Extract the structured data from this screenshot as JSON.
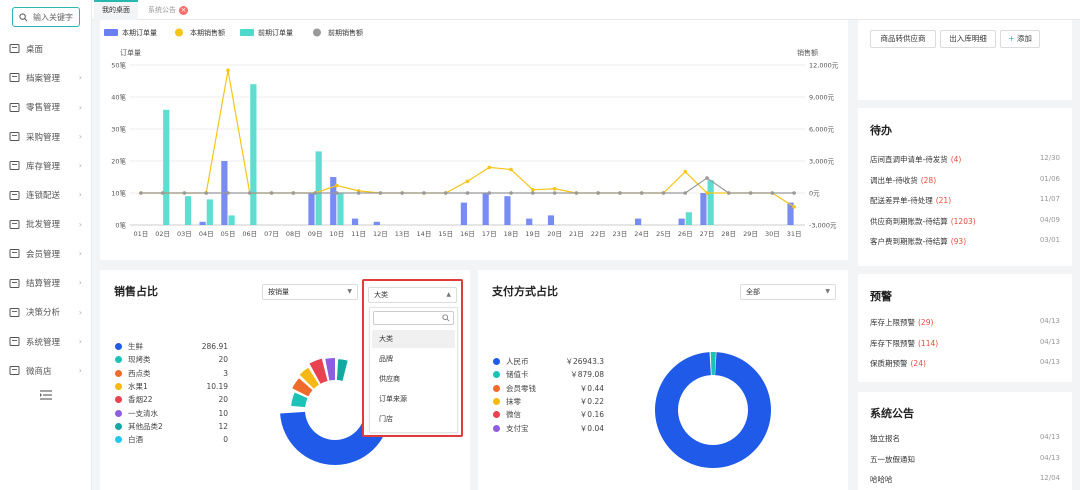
{
  "search": {
    "placeholder": "输入关键字"
  },
  "nav": [
    {
      "label": "桌面",
      "icon": "monitor-icon",
      "chev": false
    },
    {
      "label": "档案管理",
      "icon": "archive-icon",
      "chev": true
    },
    {
      "label": "零售管理",
      "icon": "store-icon",
      "chev": true
    },
    {
      "label": "采购管理",
      "icon": "megaphone-icon",
      "chev": true
    },
    {
      "label": "库存管理",
      "icon": "warehouse-icon",
      "chev": true
    },
    {
      "label": "连锁配送",
      "icon": "truck-icon",
      "chev": true
    },
    {
      "label": "批发管理",
      "icon": "wholesale-icon",
      "chev": true
    },
    {
      "label": "会员管理",
      "icon": "user-icon",
      "chev": true
    },
    {
      "label": "结算管理",
      "icon": "settlement-icon",
      "chev": true
    },
    {
      "label": "决策分析",
      "icon": "analysis-icon",
      "chev": true
    },
    {
      "label": "系统管理",
      "icon": "gear-icon",
      "chev": true
    },
    {
      "label": "微商店",
      "icon": "shop-icon",
      "chev": true
    }
  ],
  "tabs": {
    "home": "我的桌面",
    "notice": "系统公告"
  },
  "chart_legend": [
    "本期订单量",
    "本期销售额",
    "前期订单量",
    "前期销售额"
  ],
  "chart_axes": {
    "left_title": "订单量",
    "right_title": "销售额",
    "left_ticks": [
      "50笔",
      "40笔",
      "30笔",
      "20笔",
      "10笔",
      "0笔"
    ],
    "right_ticks": [
      "12,000元",
      "9,000元",
      "6,000元",
      "3,000元",
      "0元",
      "-3,000元"
    ]
  },
  "chart_data": {
    "type": "bar",
    "categories": [
      "01日",
      "02日",
      "03日",
      "04日",
      "05日",
      "06日",
      "07日",
      "08日",
      "09日",
      "10日",
      "11日",
      "12日",
      "13日",
      "14日",
      "15日",
      "16日",
      "17日",
      "18日",
      "19日",
      "20日",
      "21日",
      "22日",
      "23日",
      "24日",
      "25日",
      "26日",
      "27日",
      "28日",
      "29日",
      "30日",
      "31日"
    ],
    "series": [
      {
        "name": "本期订单量",
        "type": "bar",
        "axis": "left",
        "values": [
          0,
          0,
          0,
          1,
          20,
          0,
          0,
          0,
          10,
          15,
          2,
          1,
          0,
          0,
          0,
          7,
          10,
          9,
          2,
          3,
          0,
          0,
          0,
          2,
          0,
          2,
          10,
          0,
          0,
          0,
          7
        ]
      },
      {
        "name": "前期订单量",
        "type": "bar",
        "axis": "left",
        "values": [
          0,
          36,
          9,
          8,
          3,
          44,
          0,
          0,
          23,
          10,
          0,
          0,
          0,
          0,
          0,
          0,
          0,
          0,
          0,
          0,
          0,
          0,
          0,
          0,
          0,
          4,
          14,
          0,
          0,
          0,
          0
        ]
      },
      {
        "name": "本期销售额",
        "type": "line",
        "axis": "right",
        "values": [
          0,
          0,
          0,
          0,
          11500,
          0,
          0,
          0,
          0,
          700,
          200,
          0,
          0,
          0,
          0,
          1100,
          2400,
          2200,
          300,
          400,
          0,
          0,
          0,
          0,
          0,
          2000,
          0,
          0,
          0,
          0,
          -1300
        ]
      },
      {
        "name": "前期销售额",
        "type": "line",
        "axis": "right",
        "values": [
          0,
          0,
          0,
          0,
          0,
          0,
          0,
          0,
          0,
          0,
          0,
          0,
          0,
          0,
          0,
          0,
          0,
          0,
          0,
          0,
          0,
          0,
          0,
          0,
          0,
          0,
          1400,
          0,
          0,
          0,
          0
        ]
      }
    ],
    "ylim_left": [
      0,
      50
    ],
    "ylim_right": [
      -3000,
      12000
    ],
    "legend_position": "top-left",
    "colors": {
      "本期订单量": "#6a7ff0",
      "前期订单量": "#4dd9cc",
      "本期销售额": "#f5c518",
      "前期销售额": "#999999"
    }
  },
  "sales_share": {
    "title": "销售占比",
    "select1": "按销量",
    "select2": "大类",
    "items": [
      {
        "name": "生鲜",
        "value": "286.91",
        "color": "#1f5ae8"
      },
      {
        "name": "现烤类",
        "value": "20",
        "color": "#1cc2b6"
      },
      {
        "name": "西点类",
        "value": "3",
        "color": "#f06a2b"
      },
      {
        "name": "水果1",
        "value": "10.19",
        "color": "#f5b814"
      },
      {
        "name": "香烟22",
        "value": "20",
        "color": "#e8414f"
      },
      {
        "name": "一支清水",
        "value": "10",
        "color": "#8e5ee0"
      },
      {
        "name": "其他品类2",
        "value": "12",
        "color": "#13a8a1"
      },
      {
        "name": "白酒",
        "value": "0",
        "color": "#22c9e6"
      }
    ],
    "options": [
      "大类",
      "品牌",
      "供应商",
      "订单来源",
      "门店"
    ]
  },
  "payment_share": {
    "title": "支付方式占比",
    "select": "全部",
    "items": [
      {
        "name": "人民币",
        "value": "￥26943.3",
        "color": "#1f5ae8"
      },
      {
        "name": "储值卡",
        "value": "￥879.08",
        "color": "#1cc2b6"
      },
      {
        "name": "会员零钱",
        "value": "￥0.44",
        "color": "#f06a2b"
      },
      {
        "name": "抹零",
        "value": "￥0.22",
        "color": "#f5b814"
      },
      {
        "name": "微信",
        "value": "￥0.16",
        "color": "#e8414f"
      },
      {
        "name": "支付宝",
        "value": "￥0.04",
        "color": "#8e5ee0"
      }
    ]
  },
  "actions": {
    "b1": "商品转供应商",
    "b2": "出入库明细",
    "b3": "添加"
  },
  "todo": {
    "title": "待办",
    "items": [
      {
        "text": "店间直调申请单-待发货",
        "count": "(4)",
        "date": "12/30"
      },
      {
        "text": "调出单-待收货",
        "count": "(28)",
        "date": "01/06"
      },
      {
        "text": "配送差异单-待处理",
        "count": "(21)",
        "date": "11/07"
      },
      {
        "text": "供应商到期账款-待结算",
        "count": "(1203)",
        "date": "04/09"
      },
      {
        "text": "客户费到期账款-待结算",
        "count": "(93)",
        "date": "03/01"
      }
    ]
  },
  "alerts": {
    "title": "预警",
    "items": [
      {
        "text": "库存上限预警",
        "count": "(29)",
        "date": "04/13"
      },
      {
        "text": "库存下限预警",
        "count": "(114)",
        "date": "04/13"
      },
      {
        "text": "保质期预警",
        "count": "(24)",
        "date": "04/13"
      }
    ]
  },
  "notices": {
    "title": "系统公告",
    "items": [
      {
        "text": "独立报名",
        "date": "04/13"
      },
      {
        "text": "五一放假通知",
        "date": "04/13"
      },
      {
        "text": "哈哈哈",
        "date": "12/04"
      }
    ]
  }
}
